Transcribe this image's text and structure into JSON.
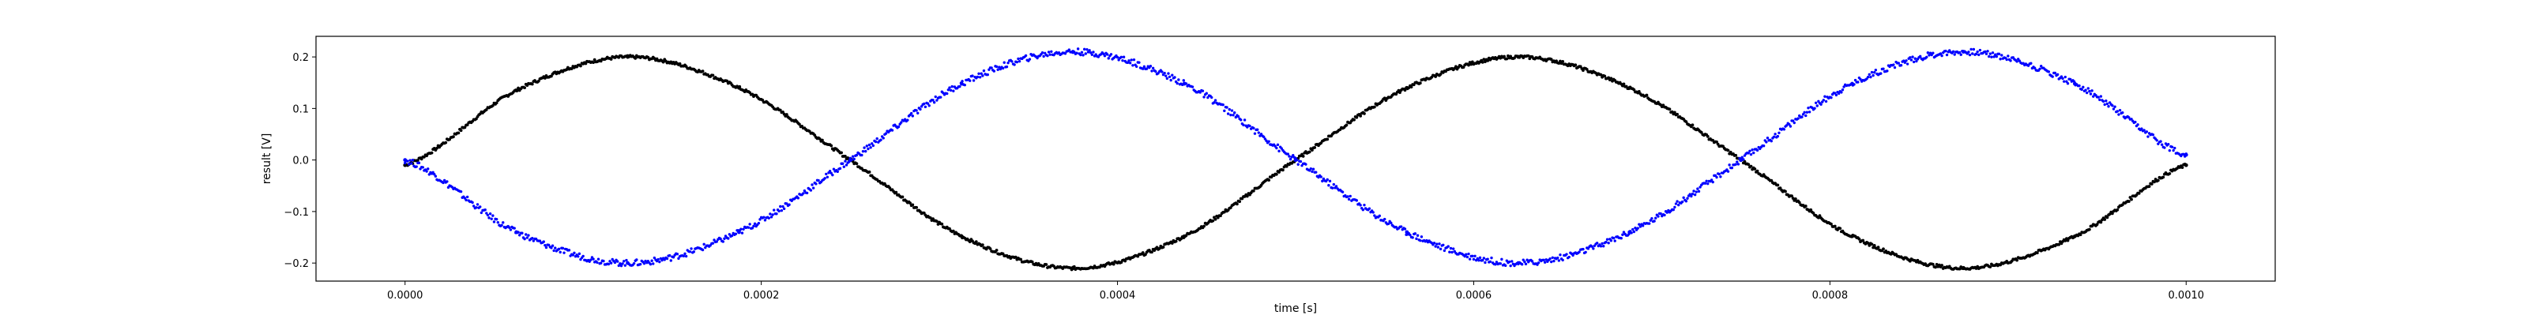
{
  "chart_data": {
    "type": "scatter",
    "title": "",
    "xlabel": "time [s]",
    "ylabel": "result [V]",
    "xlim": [
      -5e-05,
      0.00105
    ],
    "ylim": [
      -0.235,
      0.24
    ],
    "x_ticks": [
      0.0,
      0.0002,
      0.0004,
      0.0006,
      0.0008,
      0.001
    ],
    "x_tick_labels": [
      "0.0000",
      "0.0002",
      "0.0004",
      "0.0006",
      "0.0008",
      "0.0010"
    ],
    "y_ticks": [
      -0.2,
      -0.1,
      0.0,
      0.1,
      0.2
    ],
    "y_tick_labels": [
      "−0.2",
      "−0.1",
      "0.0",
      "0.1",
      "0.2"
    ],
    "grid": false,
    "legend": "none",
    "series": [
      {
        "color": "#000000",
        "marker": "dot",
        "x": [
          0.0,
          6.25e-05,
          0.000125,
          0.0001875,
          0.00025,
          0.0003125,
          0.000375,
          0.0004375,
          0.0005,
          0.0005625,
          0.000625,
          0.0006875,
          0.00075,
          0.0008125,
          0.000875,
          0.0009375,
          0.001
        ],
        "y": [
          -0.01,
          0.135,
          0.2,
          0.14,
          0.0,
          -0.148,
          -0.21,
          -0.148,
          0.0,
          0.14,
          0.2,
          0.14,
          0.0,
          -0.148,
          -0.21,
          -0.148,
          -0.01
        ]
      },
      {
        "color": "#0000ff",
        "marker": "dot",
        "x": [
          0.0,
          6.25e-05,
          0.000125,
          0.0001875,
          0.00025,
          0.0003125,
          0.000375,
          0.0004375,
          0.0005,
          0.0005625,
          0.000625,
          0.0006875,
          0.00075,
          0.0008125,
          0.000875,
          0.0009375,
          0.001
        ],
        "y": [
          0.0,
          -0.14,
          -0.2,
          -0.14,
          0.0,
          0.148,
          0.21,
          0.148,
          0.0,
          -0.14,
          -0.2,
          -0.14,
          0.0,
          0.148,
          0.21,
          0.148,
          0.01
        ]
      }
    ]
  }
}
